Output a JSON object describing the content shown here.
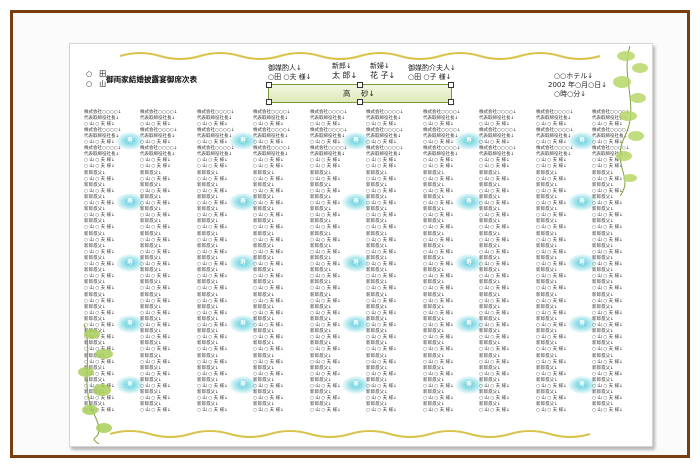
{
  "document": {
    "circles": [
      "○　田",
      "○　山"
    ],
    "title": "御両家結婚披露宴御席次表",
    "header": {
      "matchmaker_left_label": "御媒酌人↓",
      "matchmaker_left_name": "○田 ○夫 様↓",
      "groom_label": "新郎↓",
      "groom_name": "太 郎↓",
      "bride_label": "新婦↓",
      "bride_name": "花 子↓",
      "matchmaker_right_label": "御媒酌介夫人↓",
      "matchmaker_right_name": "○田 ○子 様↓",
      "venue": "○○ホテル↓",
      "date": "2002 年○月○日↓",
      "time": "○時○分↓"
    },
    "couple_table": {
      "left": "高",
      "right": "砂↓"
    },
    "table_label": "寿",
    "guest_templates": {
      "company": "株式会社○○○○↓",
      "position": "代表取締役社長↓",
      "name": "○ 山 ○ 夫 様↓",
      "relation": "新郎叔父↓"
    }
  }
}
